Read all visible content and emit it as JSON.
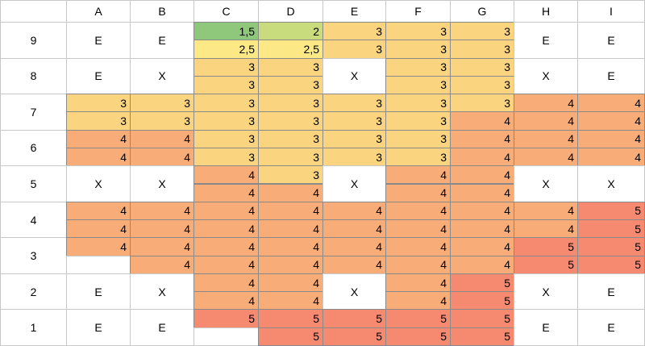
{
  "table": {
    "columns": [
      "A",
      "B",
      "C",
      "D",
      "E",
      "F",
      "G",
      "H",
      "I"
    ],
    "fills": {
      "1,5": "#8fc77b",
      "2": "#c8dc7e",
      "2,5": "#fce986",
      "3": "#fbd480",
      "4": "#f8ad78",
      "5": "#f58a70"
    },
    "rows": [
      {
        "label": "9",
        "cells": [
          "E",
          "E",
          [
            "1,5",
            "2,5"
          ],
          [
            "2",
            "2,5"
          ],
          [
            "3",
            "3"
          ],
          [
            "3",
            "3"
          ],
          [
            "3",
            "3"
          ],
          "E",
          "E"
        ]
      },
      {
        "label": "8",
        "cells": [
          "E",
          "X",
          [
            "3",
            "3"
          ],
          [
            "3",
            "3"
          ],
          "X",
          [
            "3",
            "3"
          ],
          [
            "3",
            "3"
          ],
          "X",
          "E"
        ]
      },
      {
        "label": "7",
        "cells": [
          [
            "3",
            "3"
          ],
          [
            "3",
            "3"
          ],
          [
            "3",
            "3"
          ],
          [
            "3",
            "3"
          ],
          [
            "3",
            "3"
          ],
          [
            "3",
            "3"
          ],
          [
            "3",
            "4"
          ],
          [
            "4",
            "4"
          ],
          [
            "4",
            "4"
          ]
        ]
      },
      {
        "label": "6",
        "cells": [
          [
            "4",
            "4"
          ],
          [
            "4",
            "4"
          ],
          [
            "3",
            "3"
          ],
          [
            "3",
            "3"
          ],
          [
            "3",
            "3"
          ],
          [
            "3",
            "3"
          ],
          [
            "4",
            "4"
          ],
          [
            "4",
            "4"
          ],
          [
            "4",
            "4"
          ]
        ]
      },
      {
        "label": "5",
        "cells": [
          "X",
          "X",
          [
            "4",
            "4"
          ],
          [
            "3",
            "4"
          ],
          "X",
          [
            "4",
            "4"
          ],
          [
            "4",
            "4"
          ],
          "X",
          "X"
        ]
      },
      {
        "label": "4",
        "cells": [
          [
            "4",
            "4"
          ],
          [
            "4",
            "4"
          ],
          [
            "4",
            "4"
          ],
          [
            "4",
            "4"
          ],
          [
            "4",
            "4"
          ],
          [
            "4",
            "4"
          ],
          [
            "4",
            "4"
          ],
          [
            "4",
            "4"
          ],
          [
            "5",
            "5"
          ]
        ]
      },
      {
        "label": "3",
        "cells": [
          [
            "4",
            null
          ],
          [
            "4",
            "4"
          ],
          [
            "4",
            "4"
          ],
          [
            "4",
            "4"
          ],
          [
            "4",
            "4"
          ],
          [
            "4",
            "4"
          ],
          [
            "4",
            "4"
          ],
          [
            "5",
            "5"
          ],
          [
            "5",
            "5"
          ]
        ]
      },
      {
        "label": "2",
        "cells": [
          "E",
          "X",
          [
            "4",
            "4"
          ],
          [
            "4",
            "4"
          ],
          "X",
          [
            "4",
            "4"
          ],
          [
            "5",
            "5"
          ],
          "X",
          "E"
        ]
      },
      {
        "label": "1",
        "cells": [
          "E",
          "E",
          [
            "5",
            null
          ],
          [
            "5",
            "5"
          ],
          [
            "5",
            "5"
          ],
          [
            "5",
            "5"
          ],
          [
            "5",
            "5"
          ],
          "E",
          "E"
        ]
      }
    ]
  }
}
